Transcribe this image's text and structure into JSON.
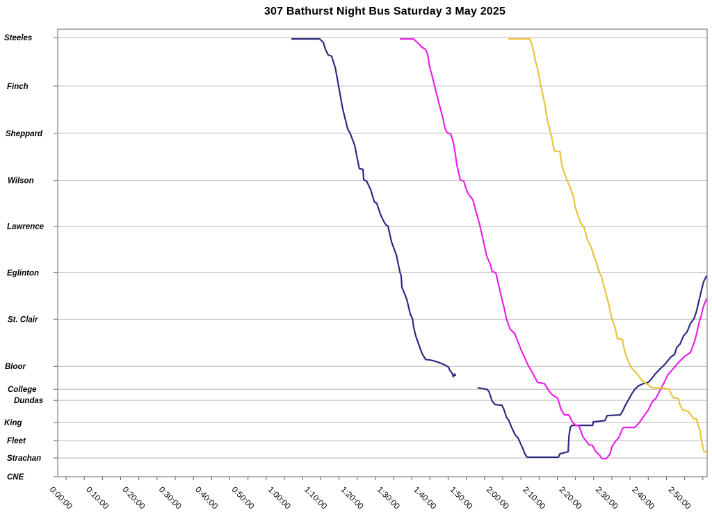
{
  "chart_data": {
    "type": "line",
    "title": "307 Bathurst Night Bus Saturday 3 May 2025",
    "legend": "none",
    "grid": "horizontal-solid",
    "x_axis": {
      "label_format": "h:mm:ss",
      "major_tick_minutes": 10,
      "minor_tick_minutes": 5,
      "range_minutes": [
        -2.3,
        176.3
      ],
      "tick_labels": [
        "0:00:00",
        "0:10:00",
        "0:20:00",
        "0:30:00",
        "0:40:00",
        "0:50:00",
        "1:00:00",
        "1:10:00",
        "1:20:00",
        "1:30:00",
        "1:40:00",
        "1:50:00",
        "2:00:00",
        "2:10:00",
        "2:20:00",
        "2:30:00",
        "2:40:00",
        "2:50:00"
      ]
    },
    "y_axis": {
      "orientation": "stations-top-to-bottom",
      "range_units": [
        0,
        645
      ],
      "stations": [
        {
          "name": "Steeles",
          "pos": 12,
          "indent": 6
        },
        {
          "name": "Finch",
          "pos": 82,
          "indent": 10
        },
        {
          "name": "Sheppard",
          "pos": 150,
          "indent": 8
        },
        {
          "name": "Wilson",
          "pos": 218,
          "indent": 11
        },
        {
          "name": "Lawrence",
          "pos": 284,
          "indent": 10
        },
        {
          "name": "Eglinton",
          "pos": 351,
          "indent": 10
        },
        {
          "name": "St. Clair",
          "pos": 418,
          "indent": 11
        },
        {
          "name": "Bloor",
          "pos": 486,
          "indent": 7
        },
        {
          "name": "College",
          "pos": 519,
          "indent": 11
        },
        {
          "name": "Dundas",
          "pos": 535,
          "indent": 20
        },
        {
          "name": "King",
          "pos": 567,
          "indent": 6
        },
        {
          "name": "Fleet",
          "pos": 593,
          "indent": 10
        },
        {
          "name": "Strachan",
          "pos": 618,
          "indent": 10
        },
        {
          "name": "CNE",
          "pos": 645,
          "indent": 10
        }
      ]
    },
    "series": [
      {
        "name": "trip-navy",
        "color": "#2c2a80",
        "segments": [
          [
            [
              62.1,
              14
            ],
            [
              69.7,
              14
            ],
            [
              70.7,
              19
            ],
            [
              71.3,
              29
            ],
            [
              72.0,
              37
            ],
            [
              73.0,
              39
            ],
            [
              74.0,
              56
            ],
            [
              74.9,
              82
            ],
            [
              76.0,
              114
            ],
            [
              77.4,
              144
            ],
            [
              78.0,
              149
            ],
            [
              79.3,
              167
            ],
            [
              80.6,
              201
            ],
            [
              81.6,
              202
            ],
            [
              81.8,
              217
            ],
            [
              82.6,
              219
            ],
            [
              83.7,
              231
            ],
            [
              84.7,
              249
            ],
            [
              85.4,
              251
            ],
            [
              86.4,
              267
            ],
            [
              87.3,
              277
            ],
            [
              87.9,
              282
            ],
            [
              88.5,
              284
            ],
            [
              89.4,
              306
            ],
            [
              90.8,
              326
            ],
            [
              91.7,
              349
            ],
            [
              92.1,
              356
            ],
            [
              92.3,
              372
            ],
            [
              93.1,
              382
            ],
            [
              93.6,
              389
            ],
            [
              94.0,
              397
            ],
            [
              94.6,
              411
            ],
            [
              95.2,
              417
            ],
            [
              95.5,
              429
            ],
            [
              96.1,
              442
            ],
            [
              97.1,
              457
            ],
            [
              97.8,
              467
            ],
            [
              98.8,
              476
            ],
            [
              100.3,
              477
            ],
            [
              101.7,
              479
            ],
            [
              102.8,
              481
            ],
            [
              104.1,
              484
            ],
            [
              105.1,
              487
            ],
            [
              105.5,
              492
            ],
            [
              106.1,
              496
            ],
            [
              106.4,
              501
            ],
            [
              106.8,
              497
            ],
            [
              107.0,
              499
            ]
          ],
          [
            [
              113.3,
              517
            ],
            [
              115.6,
              519
            ],
            [
              116.2,
              522
            ],
            [
              117.1,
              536
            ],
            [
              117.9,
              541
            ],
            [
              119.8,
              542
            ],
            [
              120.4,
              549
            ],
            [
              121.0,
              559
            ],
            [
              121.7,
              564
            ],
            [
              122.3,
              572
            ],
            [
              122.9,
              579
            ],
            [
              123.6,
              586
            ],
            [
              124.2,
              589
            ],
            [
              124.8,
              596
            ],
            [
              125.5,
              604
            ],
            [
              126.1,
              612
            ],
            [
              126.7,
              617
            ],
            [
              135.3,
              617
            ],
            [
              135.7,
              612
            ],
            [
              138.0,
              609
            ],
            [
              138.2,
              587
            ],
            [
              138.6,
              574
            ],
            [
              139.0,
              571
            ],
            [
              144.7,
              571
            ],
            [
              144.9,
              566
            ],
            [
              148.1,
              564
            ],
            [
              148.7,
              557
            ],
            [
              152.3,
              556
            ],
            [
              152.9,
              551
            ],
            [
              153.8,
              541
            ],
            [
              154.8,
              532
            ],
            [
              155.4,
              526
            ],
            [
              156.3,
              519
            ],
            [
              157.3,
              514
            ],
            [
              158.6,
              511
            ],
            [
              160.0,
              509
            ],
            [
              160.9,
              504
            ],
            [
              161.9,
              497
            ],
            [
              162.8,
              492
            ],
            [
              163.4,
              489
            ],
            [
              164.0,
              486
            ],
            [
              164.9,
              481
            ],
            [
              165.3,
              478
            ],
            [
              166.3,
              472
            ],
            [
              167.2,
              469
            ],
            [
              167.8,
              459
            ],
            [
              168.7,
              454
            ],
            [
              169.7,
              442
            ],
            [
              170.7,
              436
            ],
            [
              171.6,
              424
            ],
            [
              172.6,
              417
            ],
            [
              173.3,
              406
            ],
            [
              173.9,
              392
            ],
            [
              174.5,
              379
            ],
            [
              175.2,
              364
            ],
            [
              176.0,
              356
            ]
          ]
        ]
      },
      {
        "name": "trip-magenta",
        "color": "#e821e8",
        "segments": [
          [
            [
              91.9,
              14
            ],
            [
              95.5,
              14
            ],
            [
              96.5,
              19
            ],
            [
              97.1,
              22
            ],
            [
              97.8,
              26
            ],
            [
              98.8,
              29
            ],
            [
              99.4,
              37
            ],
            [
              99.9,
              54
            ],
            [
              100.7,
              69
            ],
            [
              101.3,
              82
            ],
            [
              102.6,
              109
            ],
            [
              103.6,
              129
            ],
            [
              104.1,
              142
            ],
            [
              104.7,
              149
            ],
            [
              105.7,
              151
            ],
            [
              106.4,
              162
            ],
            [
              107.0,
              181
            ],
            [
              107.4,
              196
            ],
            [
              108.0,
              209
            ],
            [
              108.3,
              217
            ],
            [
              109.3,
              219
            ],
            [
              109.9,
              229
            ],
            [
              110.5,
              237
            ],
            [
              111.2,
              242
            ],
            [
              111.8,
              246
            ],
            [
              113.7,
              282
            ],
            [
              115.6,
              327
            ],
            [
              116.6,
              339
            ],
            [
              117.1,
              349
            ],
            [
              118.1,
              351
            ],
            [
              118.9,
              369
            ],
            [
              119.8,
              389
            ],
            [
              120.4,
              402
            ],
            [
              121.0,
              417
            ],
            [
              122.0,
              432
            ],
            [
              123.3,
              439
            ],
            [
              125.2,
              464
            ],
            [
              126.1,
              474
            ],
            [
              127.1,
              486
            ],
            [
              127.5,
              489
            ],
            [
              129.6,
              509
            ],
            [
              131.5,
              511
            ],
            [
              132.4,
              519
            ],
            [
              133.4,
              526
            ],
            [
              135.1,
              532
            ],
            [
              136.1,
              549
            ],
            [
              137.0,
              556
            ],
            [
              138.2,
              556
            ],
            [
              139.1,
              566
            ],
            [
              140.1,
              571
            ],
            [
              141.0,
              572
            ],
            [
              142.0,
              587
            ],
            [
              142.7,
              592
            ],
            [
              143.7,
              599
            ],
            [
              144.7,
              600
            ],
            [
              145.6,
              609
            ],
            [
              146.6,
              614
            ],
            [
              147.3,
              619
            ],
            [
              148.5,
              619
            ],
            [
              149.5,
              612
            ],
            [
              150.0,
              602
            ],
            [
              151.0,
              594
            ],
            [
              151.9,
              589
            ],
            [
              152.9,
              576
            ],
            [
              153.3,
              574
            ],
            [
              156.3,
              574
            ],
            [
              157.7,
              566
            ],
            [
              159.0,
              556
            ],
            [
              160.0,
              549
            ],
            [
              161.1,
              537
            ],
            [
              162.1,
              532
            ],
            [
              163.4,
              519
            ],
            [
              164.4,
              509
            ],
            [
              165.3,
              499
            ],
            [
              166.6,
              491
            ],
            [
              168.2,
              481
            ],
            [
              170.1,
              471
            ],
            [
              171.6,
              466
            ],
            [
              172.6,
              452
            ],
            [
              173.3,
              439
            ],
            [
              173.9,
              424
            ],
            [
              174.5,
              414
            ],
            [
              175.2,
              399
            ],
            [
              176.0,
              389
            ]
          ]
        ]
      },
      {
        "name": "trip-gold",
        "color": "#ecc23c",
        "segments": [
          [
            [
              121.7,
              14
            ],
            [
              127.5,
              14
            ],
            [
              128.0,
              22
            ],
            [
              128.6,
              34
            ],
            [
              129.0,
              46
            ],
            [
              129.6,
              57
            ],
            [
              130.1,
              71
            ],
            [
              130.5,
              82
            ],
            [
              131.1,
              96
            ],
            [
              131.7,
              112
            ],
            [
              132.2,
              129
            ],
            [
              133.0,
              146
            ],
            [
              133.4,
              154
            ],
            [
              133.9,
              169
            ],
            [
              134.3,
              176
            ],
            [
              135.7,
              176
            ],
            [
              136.3,
              197
            ],
            [
              137.6,
              217
            ],
            [
              138.6,
              229
            ],
            [
              139.5,
              242
            ],
            [
              139.9,
              256
            ],
            [
              141.4,
              279
            ],
            [
              141.8,
              282
            ],
            [
              142.4,
              286
            ],
            [
              143.3,
              304
            ],
            [
              144.3,
              314
            ],
            [
              145.2,
              329
            ],
            [
              145.6,
              334
            ],
            [
              146.6,
              351
            ],
            [
              147.1,
              356
            ],
            [
              148.1,
              376
            ],
            [
              149.1,
              396
            ],
            [
              150.0,
              417
            ],
            [
              150.6,
              426
            ],
            [
              151.0,
              432
            ],
            [
              151.5,
              446
            ],
            [
              152.9,
              447
            ],
            [
              153.3,
              459
            ],
            [
              153.8,
              469
            ],
            [
              154.8,
              482
            ],
            [
              155.8,
              491
            ],
            [
              156.1,
              492
            ],
            [
              157.3,
              499
            ],
            [
              158.2,
              506
            ],
            [
              159.0,
              509
            ],
            [
              161.1,
              517
            ],
            [
              163.8,
              517
            ],
            [
              165.7,
              519
            ],
            [
              166.8,
              531
            ],
            [
              168.2,
              532
            ],
            [
              168.7,
              541
            ],
            [
              169.5,
              549
            ],
            [
              171.0,
              551
            ],
            [
              171.4,
              554
            ],
            [
              172.4,
              561
            ],
            [
              173.3,
              562
            ],
            [
              173.5,
              567
            ],
            [
              174.3,
              579
            ],
            [
              174.5,
              589
            ],
            [
              174.9,
              599
            ],
            [
              175.2,
              607
            ],
            [
              175.4,
              609
            ],
            [
              176.3,
              609
            ]
          ]
        ]
      }
    ]
  },
  "colors": {
    "frame": "#7f7f7f",
    "grid": "#b9b9b9",
    "tick": "#595959",
    "text": "#000000"
  }
}
